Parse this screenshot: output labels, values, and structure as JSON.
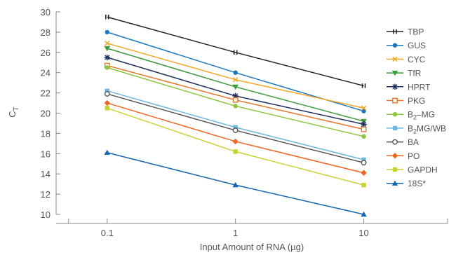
{
  "chart_data": {
    "type": "line",
    "title": "",
    "ylabel": "C",
    "ylabel_subscript": "T",
    "xlabel": "Input Amount of RNA (µg)",
    "x": [
      0.1,
      1,
      10
    ],
    "x_tick_labels": [
      "0.1",
      "1",
      "10"
    ],
    "x_scale": "log",
    "xlim": [
      0.04,
      45
    ],
    "ylim": [
      10,
      30
    ],
    "y_ticks": [
      10,
      12,
      14,
      16,
      18,
      20,
      22,
      24,
      26,
      28,
      30
    ],
    "grid": false,
    "legend_position": "right",
    "series": [
      {
        "name": "TBP",
        "color": "#222222",
        "marker": "tick",
        "values": [
          29.5,
          26.0,
          22.7
        ]
      },
      {
        "name": "GUS",
        "color": "#1a78c2",
        "marker": "circle",
        "values": [
          28.0,
          24.0,
          20.2
        ]
      },
      {
        "name": "CYC",
        "color": "#f5a623",
        "marker": "x",
        "values": [
          26.9,
          23.3,
          20.5
        ]
      },
      {
        "name": "TfR",
        "color": "#3a9a3a",
        "marker": "triangle-down",
        "values": [
          26.4,
          22.6,
          19.2
        ]
      },
      {
        "name": "HPRT",
        "color": "#1f2f5e",
        "marker": "star",
        "values": [
          25.5,
          21.7,
          18.9
        ]
      },
      {
        "name": "PKG",
        "color": "#e8762b",
        "marker": "square-open",
        "values": [
          24.7,
          21.3,
          18.4
        ]
      },
      {
        "name": "B",
        "name_sub": "2",
        "name_suffix": "–MG",
        "color": "#8cc63f",
        "marker": "circle",
        "values": [
          24.5,
          20.7,
          17.7
        ]
      },
      {
        "name": "B",
        "name_sub": "2",
        "name_suffix": "MG/WB",
        "color": "#6fb7e0",
        "marker": "square",
        "values": [
          22.2,
          18.6,
          15.4
        ]
      },
      {
        "name": "BA",
        "color": "#555555",
        "marker": "circle-open",
        "values": [
          21.9,
          18.3,
          15.1
        ]
      },
      {
        "name": "PO",
        "color": "#f26522",
        "marker": "diamond",
        "values": [
          21.0,
          17.2,
          14.1
        ]
      },
      {
        "name": "GAPDH",
        "color": "#c8d232",
        "marker": "square",
        "values": [
          20.5,
          16.2,
          12.9
        ]
      },
      {
        "name": "18S*",
        "color": "#1766b0",
        "marker": "triangle",
        "values": [
          16.1,
          12.9,
          10.0
        ]
      }
    ]
  }
}
